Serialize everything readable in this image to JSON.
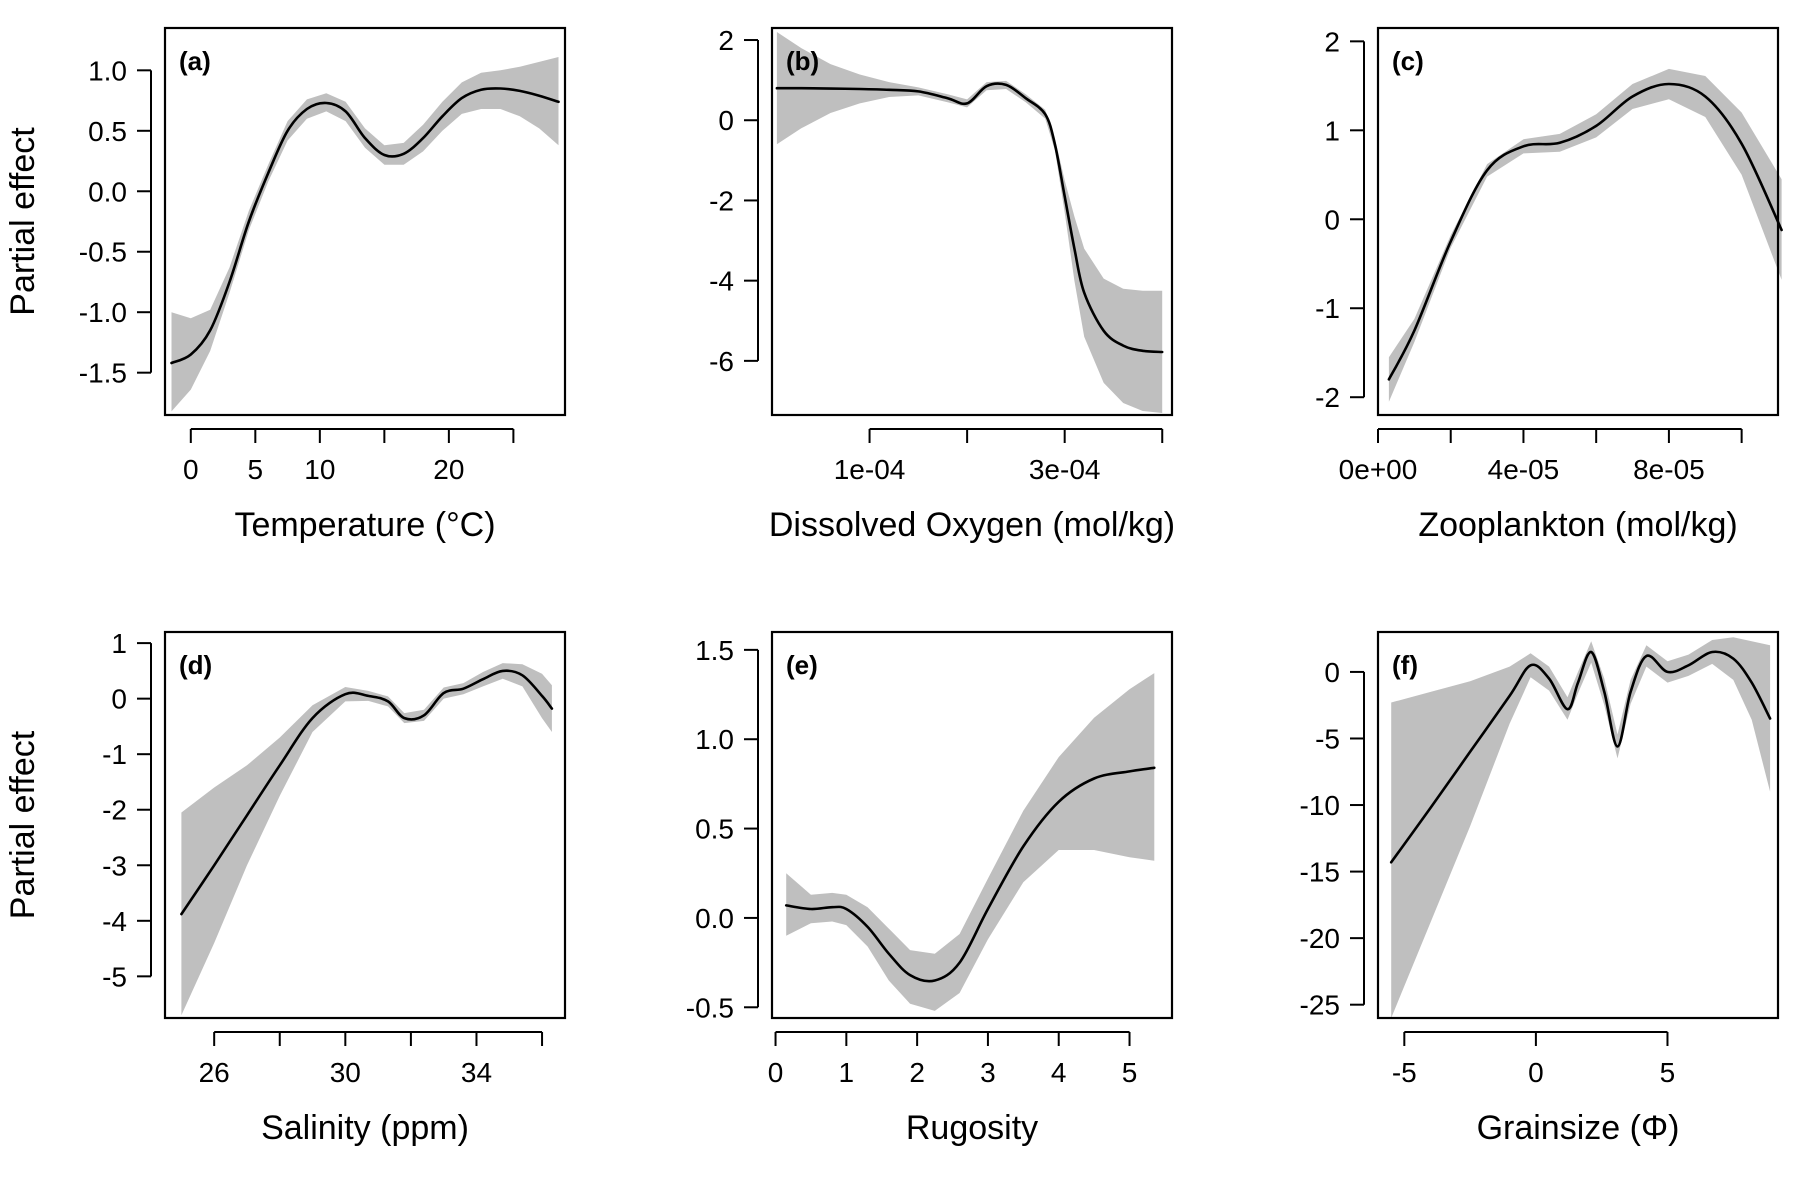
{
  "chart_data": [
    {
      "type": "line",
      "panel": "(a)",
      "xlabel": "Temperature (°C)",
      "ylabel": "Partial effect",
      "xlim": [
        -2,
        29
      ],
      "ylim": [
        -1.85,
        1.35
      ],
      "x_ticks": [
        0,
        5,
        10,
        15,
        20,
        25
      ],
      "x_tick_labels": [
        "0",
        "5",
        "10",
        "",
        "20",
        ""
      ],
      "y_ticks": [
        -1.5,
        -1.0,
        -0.5,
        0.0,
        0.5,
        1.0
      ],
      "y_tick_labels": [
        "-1.5",
        "-1.0",
        "-0.5",
        "0.0",
        "0.5",
        "1.0"
      ],
      "series": [
        {
          "x": [
            -1.5,
            0,
            1.5,
            3,
            4.5,
            6,
            7.5,
            9,
            10.5,
            12,
            13.5,
            15,
            16.5,
            18,
            19.5,
            21,
            22.5,
            24,
            25.5,
            27,
            28.5
          ],
          "y": [
            -1.42,
            -1.35,
            -1.15,
            -0.75,
            -0.25,
            0.15,
            0.5,
            0.68,
            0.73,
            0.66,
            0.44,
            0.3,
            0.31,
            0.44,
            0.62,
            0.77,
            0.84,
            0.85,
            0.83,
            0.79,
            0.74
          ],
          "lower": [
            -1.82,
            -1.64,
            -1.32,
            -0.84,
            -0.32,
            0.08,
            0.42,
            0.6,
            0.66,
            0.58,
            0.36,
            0.22,
            0.22,
            0.33,
            0.5,
            0.64,
            0.68,
            0.68,
            0.62,
            0.52,
            0.38
          ],
          "upper": [
            -1.0,
            -1.05,
            -0.98,
            -0.63,
            -0.16,
            0.22,
            0.58,
            0.76,
            0.81,
            0.74,
            0.52,
            0.38,
            0.4,
            0.55,
            0.74,
            0.9,
            0.98,
            1.0,
            1.03,
            1.07,
            1.11
          ]
        }
      ]
    },
    {
      "type": "line",
      "panel": "(b)",
      "xlabel": "Dissolved Oxygen (mol/kg)",
      "ylabel": "",
      "xlim": [
        0.0,
        0.00041
      ],
      "ylim": [
        -7.35,
        2.3
      ],
      "x_ticks": [
        0.0001,
        0.0002,
        0.0003,
        0.0004
      ],
      "x_tick_labels": [
        "1e-04",
        "",
        "3e-04",
        ""
      ],
      "y_ticks": [
        -6,
        -4,
        -2,
        0,
        2
      ],
      "y_tick_labels": [
        "-6",
        "-4",
        "-2",
        "0",
        "2"
      ],
      "series": [
        {
          "x": [
            5e-06,
            3e-05,
            6e-05,
            9e-05,
            0.00012,
            0.00015,
            0.00018,
            0.0002,
            0.00022,
            0.00024,
            0.00026,
            0.00028,
            0.00029,
            0.0003,
            0.00031,
            0.00032,
            0.00034,
            0.00036,
            0.00038,
            0.0004
          ],
          "y": [
            0.8,
            0.8,
            0.79,
            0.78,
            0.76,
            0.72,
            0.55,
            0.42,
            0.85,
            0.88,
            0.55,
            0.15,
            -0.6,
            -1.9,
            -3.2,
            -4.3,
            -5.25,
            -5.62,
            -5.75,
            -5.78
          ],
          "lower": [
            -0.6,
            -0.2,
            0.18,
            0.42,
            0.58,
            0.62,
            0.45,
            0.32,
            0.75,
            0.78,
            0.45,
            0.04,
            -0.75,
            -2.3,
            -4.0,
            -5.4,
            -6.55,
            -7.05,
            -7.25,
            -7.3
          ],
          "upper": [
            2.2,
            1.8,
            1.4,
            1.14,
            0.95,
            0.82,
            0.65,
            0.52,
            0.95,
            0.98,
            0.65,
            0.26,
            -0.45,
            -1.5,
            -2.4,
            -3.2,
            -3.95,
            -4.2,
            -4.25,
            -4.25
          ]
        }
      ]
    },
    {
      "type": "line",
      "panel": "(c)",
      "xlabel": "Zooplankton (mol/kg)",
      "ylabel": "",
      "xlim": [
        0.0,
        0.00011
      ],
      "ylim": [
        -2.2,
        2.15
      ],
      "x_ticks": [
        0.0,
        2e-05,
        4e-05,
        6e-05,
        8e-05,
        0.0001
      ],
      "x_tick_labels": [
        "0e+00",
        "",
        "4e-05",
        "",
        "8e-05",
        ""
      ],
      "y_ticks": [
        -2,
        -1,
        0,
        1,
        2
      ],
      "y_tick_labels": [
        "-2",
        "-1",
        "0",
        "1",
        "2"
      ],
      "series": [
        {
          "x": [
            3e-06,
            1e-05,
            2e-05,
            3e-05,
            4e-05,
            5e-05,
            6e-05,
            7e-05,
            8e-05,
            9e-05,
            0.0001,
            0.000111
          ],
          "y": [
            -1.8,
            -1.25,
            -0.25,
            0.55,
            0.82,
            0.86,
            1.05,
            1.38,
            1.52,
            1.38,
            0.85,
            -0.12
          ],
          "lower": [
            -2.05,
            -1.38,
            -0.32,
            0.48,
            0.74,
            0.76,
            0.92,
            1.24,
            1.35,
            1.15,
            0.5,
            -0.68
          ],
          "upper": [
            -1.55,
            -1.12,
            -0.18,
            0.62,
            0.9,
            0.96,
            1.18,
            1.52,
            1.69,
            1.61,
            1.2,
            0.45
          ]
        }
      ]
    },
    {
      "type": "line",
      "panel": "(d)",
      "xlabel": "Salinity (ppm)",
      "ylabel": "Partial effect",
      "xlim": [
        24.5,
        36.7
      ],
      "ylim": [
        -5.75,
        1.2
      ],
      "x_ticks": [
        26,
        28,
        30,
        32,
        34,
        36
      ],
      "x_tick_labels": [
        "26",
        "",
        "30",
        "",
        "34",
        ""
      ],
      "y_ticks": [
        -5,
        -4,
        -3,
        -2,
        -1,
        0,
        1
      ],
      "y_tick_labels": [
        "-5",
        "-4",
        "-3",
        "-2",
        "-1",
        "0",
        "1"
      ],
      "series": [
        {
          "x": [
            25.0,
            26,
            27,
            28,
            29,
            30,
            30.7,
            31.3,
            31.8,
            32.4,
            33.0,
            33.6,
            34.2,
            34.8,
            35.4,
            36.0,
            36.3
          ],
          "y": [
            -3.88,
            -3.0,
            -2.1,
            -1.2,
            -0.35,
            0.08,
            0.05,
            -0.05,
            -0.35,
            -0.3,
            0.1,
            0.18,
            0.35,
            0.5,
            0.42,
            0.05,
            -0.18
          ],
          "lower": [
            -5.7,
            -4.4,
            -3.0,
            -1.75,
            -0.6,
            -0.05,
            -0.04,
            -0.14,
            -0.44,
            -0.4,
            0.0,
            0.08,
            0.22,
            0.36,
            0.22,
            -0.35,
            -0.6
          ],
          "upper": [
            -2.05,
            -1.6,
            -1.2,
            -0.7,
            -0.12,
            0.21,
            0.14,
            0.04,
            -0.26,
            -0.2,
            0.2,
            0.28,
            0.48,
            0.64,
            0.62,
            0.45,
            0.24
          ]
        }
      ]
    },
    {
      "type": "line",
      "panel": "(e)",
      "xlabel": "Rugosity",
      "ylabel": "",
      "xlim": [
        -0.05,
        5.6
      ],
      "ylim": [
        -0.56,
        1.6
      ],
      "x_ticks": [
        0,
        1,
        2,
        3,
        4,
        5
      ],
      "x_tick_labels": [
        "0",
        "1",
        "2",
        "3",
        "4",
        "5"
      ],
      "y_ticks": [
        -0.5,
        0.0,
        0.5,
        1.0,
        1.5
      ],
      "y_tick_labels": [
        "-0.5",
        "0.0",
        "0.5",
        "1.0",
        "1.5"
      ],
      "series": [
        {
          "x": [
            0.15,
            0.5,
            0.8,
            1.0,
            1.3,
            1.6,
            1.9,
            2.25,
            2.6,
            3.0,
            3.5,
            4.0,
            4.5,
            5.0,
            5.35
          ],
          "y": [
            0.07,
            0.05,
            0.06,
            0.05,
            -0.05,
            -0.2,
            -0.32,
            -0.35,
            -0.25,
            0.05,
            0.4,
            0.65,
            0.78,
            0.82,
            0.84
          ],
          "lower": [
            -0.1,
            -0.03,
            -0.02,
            -0.04,
            -0.16,
            -0.35,
            -0.48,
            -0.52,
            -0.42,
            -0.12,
            0.2,
            0.38,
            0.38,
            0.34,
            0.32
          ],
          "upper": [
            0.25,
            0.13,
            0.14,
            0.13,
            0.06,
            -0.06,
            -0.18,
            -0.2,
            -0.09,
            0.22,
            0.6,
            0.9,
            1.12,
            1.28,
            1.37
          ]
        }
      ]
    },
    {
      "type": "line",
      "panel": "(f)",
      "xlabel": "Grainsize (Φ)",
      "ylabel": "",
      "xlim": [
        -6.0,
        9.2
      ],
      "ylim": [
        -26.0,
        3.0
      ],
      "x_ticks": [
        -5,
        0,
        5
      ],
      "x_tick_labels": [
        "-5",
        "0",
        "5"
      ],
      "y_ticks": [
        -25,
        -20,
        -15,
        -10,
        -5,
        0
      ],
      "y_tick_labels": [
        "-25",
        "-20",
        "-15",
        "-10",
        "-5",
        "0"
      ],
      "series": [
        {
          "x": [
            -5.5,
            -4,
            -2.5,
            -1,
            -0.2,
            0.5,
            1.2,
            1.6,
            2.1,
            2.6,
            3.1,
            3.6,
            4.2,
            5.0,
            5.8,
            6.7,
            7.5,
            8.2,
            8.9
          ],
          "y": [
            -14.3,
            -10.2,
            -6.0,
            -1.8,
            0.5,
            -0.5,
            -2.8,
            -0.8,
            1.5,
            -1.5,
            -5.6,
            -1.5,
            1.2,
            0.0,
            0.5,
            1.5,
            1.0,
            -0.8,
            -3.5
          ],
          "lower": [
            -26.0,
            -18.8,
            -11.6,
            -3.9,
            -0.4,
            -1.4,
            -3.6,
            -1.6,
            0.7,
            -2.5,
            -6.5,
            -2.4,
            0.4,
            -0.8,
            -0.3,
            0.6,
            -0.6,
            -3.6,
            -9.0
          ],
          "upper": [
            -2.3,
            -1.5,
            -0.7,
            0.4,
            1.4,
            0.4,
            -1.9,
            0.0,
            2.3,
            -0.5,
            -4.7,
            -0.6,
            2.0,
            0.8,
            1.3,
            2.4,
            2.6,
            2.3,
            2.0
          ]
        }
      ]
    }
  ]
}
